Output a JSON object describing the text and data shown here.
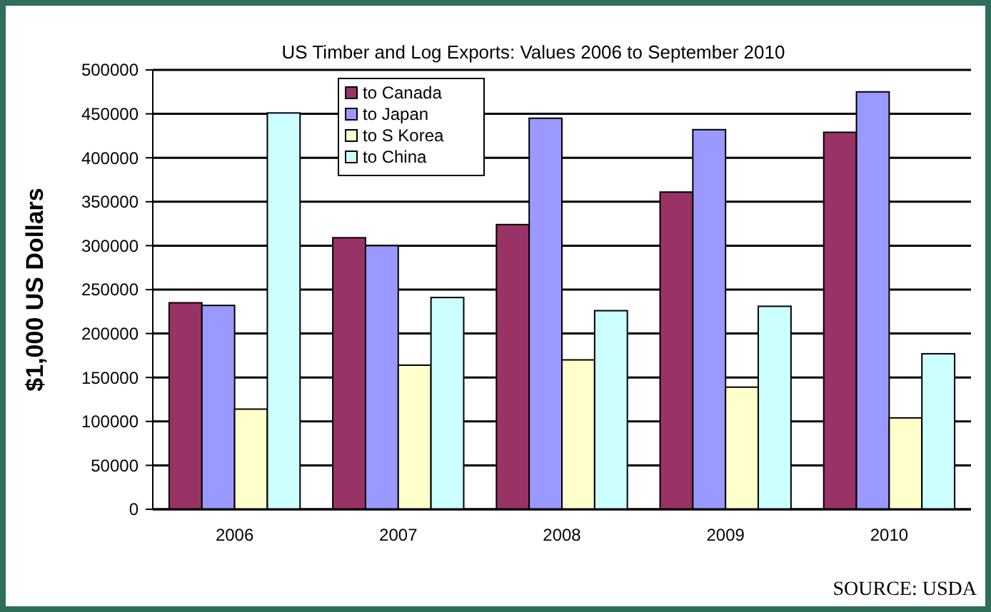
{
  "chart_data": {
    "type": "bar",
    "title": "US Timber and Log Exports: Values 2006 to September 2010",
    "ylabel": "$1,000 US Dollars",
    "categories": [
      "2006",
      "2007",
      "2008",
      "2009",
      "2010"
    ],
    "series": [
      {
        "name": "to Canada",
        "color": "#993366",
        "values": [
          235000,
          309000,
          324000,
          361000,
          429000
        ]
      },
      {
        "name": "to Japan",
        "color": "#9999ff",
        "values": [
          232000,
          300000,
          445000,
          432000,
          475000
        ]
      },
      {
        "name": "to S Korea",
        "color": "#ffffcc",
        "values": [
          114000,
          164000,
          170000,
          139000,
          104000
        ]
      },
      {
        "name": "to China",
        "color": "#ccffff",
        "values": [
          451000,
          241000,
          226000,
          231000,
          177000
        ]
      }
    ],
    "ylim": [
      0,
      500000
    ],
    "yticks": [
      0,
      50000,
      100000,
      150000,
      200000,
      250000,
      300000,
      350000,
      400000,
      450000,
      500000
    ],
    "grid": "y",
    "legend": "top left",
    "annotations": [
      "SOURCE: USDA"
    ]
  }
}
